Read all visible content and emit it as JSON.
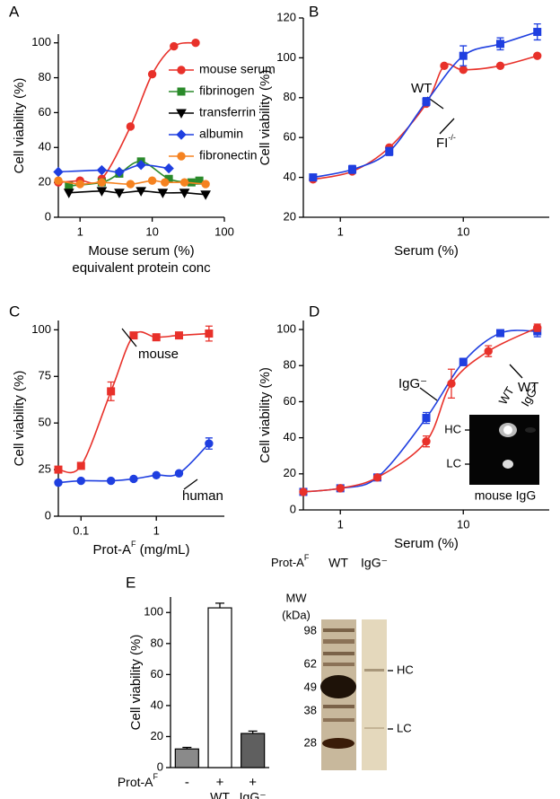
{
  "chart_data": [
    {
      "type": "scatter",
      "panel": "A",
      "xscale": "log",
      "xlim": [
        0.5,
        100
      ],
      "xticks": [
        1,
        10,
        100
      ],
      "ylim": [
        0,
        105
      ],
      "yticks": [
        0,
        20,
        40,
        60,
        80,
        100
      ],
      "y_label": "Cell viability (%)",
      "x_label": "Mouse serum (%)",
      "x_label_2": "equivalent protein conc",
      "legend": "upper right",
      "series": [
        {
          "name": "mouse serum",
          "color": "#e8312a",
          "marker": "circle",
          "x": [
            0.5,
            1,
            2,
            5,
            10,
            20,
            40
          ],
          "values": [
            20,
            21,
            22,
            52,
            82,
            98,
            100
          ]
        },
        {
          "name": "fibrinogen",
          "color": "#2a8a2a",
          "marker": "square",
          "x": [
            0.7,
            2,
            3.5,
            7,
            17,
            35,
            45
          ],
          "values": [
            18,
            20,
            25,
            32,
            22,
            20,
            21
          ]
        },
        {
          "name": "transferrin",
          "color": "#000000",
          "marker": "triangle-down",
          "x": [
            0.7,
            2,
            3.5,
            7,
            14,
            28,
            55
          ],
          "values": [
            14,
            15,
            14,
            15,
            14,
            14,
            13
          ]
        },
        {
          "name": "albumin",
          "color": "#1f3fe0",
          "marker": "diamond",
          "x": [
            0.5,
            2,
            3.5,
            7,
            17
          ],
          "values": [
            26,
            27,
            26,
            30,
            28
          ]
        },
        {
          "name": "fibronectin",
          "color": "#f58220",
          "marker": "circle",
          "x": [
            0.5,
            1,
            2,
            5,
            10,
            15,
            28,
            55
          ],
          "values": [
            21,
            19,
            20,
            19,
            21,
            20,
            20,
            19
          ]
        }
      ]
    },
    {
      "type": "scatter",
      "panel": "B",
      "xscale": "log",
      "xlim": [
        0.5,
        50
      ],
      "xticks": [
        1,
        10
      ],
      "ylim": [
        20,
        120
      ],
      "yticks": [
        20,
        40,
        60,
        80,
        100,
        120
      ],
      "y_label": "Cell viability (%)",
      "x_label": "Serum (%)",
      "series": [
        {
          "name": "WT",
          "color": "#e8312a",
          "marker": "circle",
          "x": [
            0.6,
            1.25,
            2.5,
            5,
            7,
            10,
            20,
            40
          ],
          "values": [
            39,
            43,
            55,
            77,
            96,
            94,
            96,
            101
          ]
        },
        {
          "name": "FI",
          "name_sup": "-/-",
          "color": "#1f3fe0",
          "marker": "square",
          "x": [
            0.6,
            1.25,
            2.5,
            5,
            10,
            20,
            40
          ],
          "values": [
            40,
            44,
            53,
            78,
            101,
            107,
            113
          ],
          "errors": [
            1,
            2,
            2,
            2,
            5,
            3,
            4
          ]
        }
      ]
    },
    {
      "type": "scatter",
      "panel": "C",
      "xscale": "log",
      "xlim": [
        0.05,
        8
      ],
      "xticks": [
        0.1,
        1
      ],
      "ylim": [
        0,
        105
      ],
      "yticks": [
        0,
        25,
        50,
        75,
        100
      ],
      "y_label": "Cell viability (%)",
      "x_label": "Prot-A",
      "x_label_sup": "F",
      "x_label_unit": " (mg/mL)",
      "series": [
        {
          "name": "mouse",
          "color": "#e8312a",
          "marker": "square",
          "x": [
            0.05,
            0.1,
            0.25,
            0.5,
            1,
            2,
            5
          ],
          "values": [
            25,
            27,
            67,
            97,
            96,
            97,
            98
          ],
          "errors": [
            null,
            null,
            5,
            null,
            null,
            null,
            4
          ]
        },
        {
          "name": "human",
          "color": "#1f3fe0",
          "marker": "circle",
          "x": [
            0.05,
            0.1,
            0.25,
            0.5,
            1,
            2,
            5
          ],
          "values": [
            18,
            19,
            19,
            20,
            22,
            23,
            39
          ],
          "errors": [
            null,
            null,
            null,
            null,
            null,
            null,
            3
          ]
        }
      ]
    },
    {
      "type": "scatter",
      "panel": "D",
      "xscale": "log",
      "xlim": [
        0.5,
        50
      ],
      "xticks": [
        1,
        10
      ],
      "ylim": [
        0,
        105
      ],
      "yticks": [
        0,
        20,
        40,
        60,
        80,
        100
      ],
      "y_label": "Cell viability (%)",
      "x_label": "Serum (%)",
      "series": [
        {
          "name": "IgG⁻",
          "color": "#1f3fe0",
          "marker": "square",
          "x": [
            0.5,
            1,
            2,
            5,
            10,
            20,
            40
          ],
          "values": [
            10,
            12,
            18,
            51,
            82,
            98,
            99
          ],
          "errors": [
            null,
            null,
            null,
            3,
            2,
            null,
            3
          ]
        },
        {
          "name": "WT",
          "color": "#e8312a",
          "marker": "circle",
          "x": [
            0.5,
            1,
            2,
            5,
            8,
            16,
            40
          ],
          "values": [
            10,
            12,
            18,
            38,
            70,
            88,
            101
          ],
          "errors": [
            null,
            null,
            null,
            3,
            8,
            3,
            2
          ]
        }
      ]
    },
    {
      "type": "bar",
      "panel": "E",
      "ylim": [
        0,
        110
      ],
      "yticks": [
        0,
        20,
        40,
        60,
        80,
        100
      ],
      "y_label": "Cell viability (%)",
      "x_label": "Prot-A",
      "x_label_sup": "F",
      "categories": [
        "-",
        "+",
        "+"
      ],
      "category_sublabels": [
        null,
        "WT",
        "IgG⁻"
      ],
      "values": [
        12,
        103,
        22
      ],
      "errors": [
        1,
        3,
        1.5
      ],
      "colors": [
        "#8a8a8a",
        "#ffffff",
        "#5f5f5f"
      ]
    }
  ],
  "gel_D": {
    "lanes": [
      "WT",
      "IgG⁻"
    ],
    "bands": [
      "HC",
      "LC"
    ],
    "caption": "mouse IgG"
  },
  "gel_E": {
    "header": "Prot-A",
    "header_sup": "F",
    "lanes": [
      "WT",
      "IgG⁻"
    ],
    "mw_title": "MW",
    "mw_unit": "(kDa)",
    "mw": [
      "98",
      "62",
      "49",
      "38",
      "28"
    ],
    "bands": [
      "HC",
      "LC"
    ]
  }
}
